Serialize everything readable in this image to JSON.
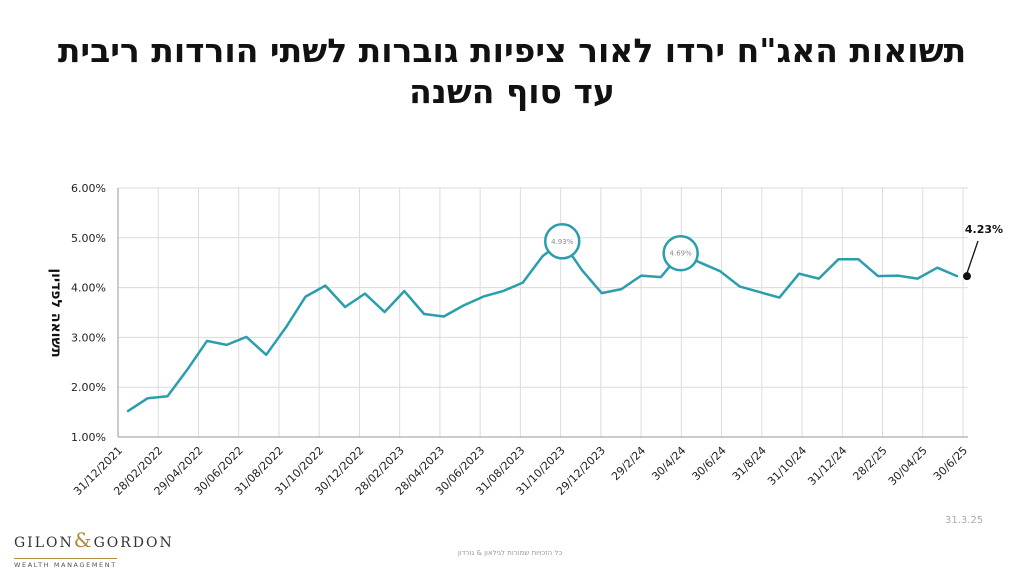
{
  "slide": {
    "title_line1": "תשואות האג\"ח ירדו לאור ציפיות גוברות לשתי הורדות ריבית",
    "title_line2": "עד סוף השנה",
    "date": "31.3.25",
    "copyright": "כל הזכויות שמורות לגילאון & גורדון"
  },
  "brand": {
    "name_left": "GILON",
    "amp": "&",
    "name_right": "GORDON",
    "subtitle": "WEALTH MANAGEMENT"
  },
  "colors": {
    "series": "#2a9ead",
    "grid": "#dcdcdc",
    "axis_text": "#222222",
    "marker": "#111111",
    "annotation_text": "#8a8a8a"
  },
  "chart_data": {
    "type": "line",
    "ylabel": "תשואה לפדיון",
    "xlabel": "",
    "ylim": [
      0.01,
      0.06
    ],
    "y_ticks": [
      "1.00%",
      "2.00%",
      "3.00%",
      "4.00%",
      "5.00%",
      "6.00%"
    ],
    "grid": true,
    "x_tick_labels": [
      "31/12/2021",
      "28/02/2022",
      "29/04/2022",
      "30/06/2022",
      "31/08/2022",
      "31/10/2022",
      "30/12/2022",
      "28/02/2023",
      "28/04/2023",
      "30/06/2023",
      "31/08/2023",
      "31/10/2023",
      "29/12/2023",
      "29/2/24",
      "30/4/24",
      "30/6/24",
      "31/8/24",
      "31/10/24",
      "31/12/24",
      "28/2/25",
      "30/04/25",
      "30/6/25"
    ],
    "series": [
      {
        "values": [
          1.52,
          1.78,
          1.82,
          2.35,
          2.93,
          2.85,
          3.01,
          2.65,
          3.2,
          3.82,
          4.04,
          3.61,
          3.88,
          3.51,
          3.93,
          3.47,
          3.42,
          3.64,
          3.82,
          3.93,
          4.1,
          4.63,
          4.93,
          4.35,
          3.89,
          3.97,
          4.24,
          4.21,
          4.69,
          4.5,
          4.33,
          4.02,
          3.91,
          3.8,
          4.28,
          4.18,
          4.57,
          4.57,
          4.23,
          4.24,
          4.18,
          4.4,
          4.23
        ]
      }
    ],
    "annotations": [
      {
        "label": "4.93%",
        "style": "circle"
      },
      {
        "label": "4.69%",
        "style": "circle"
      },
      {
        "label": "4.23%",
        "style": "end-marker"
      }
    ]
  }
}
